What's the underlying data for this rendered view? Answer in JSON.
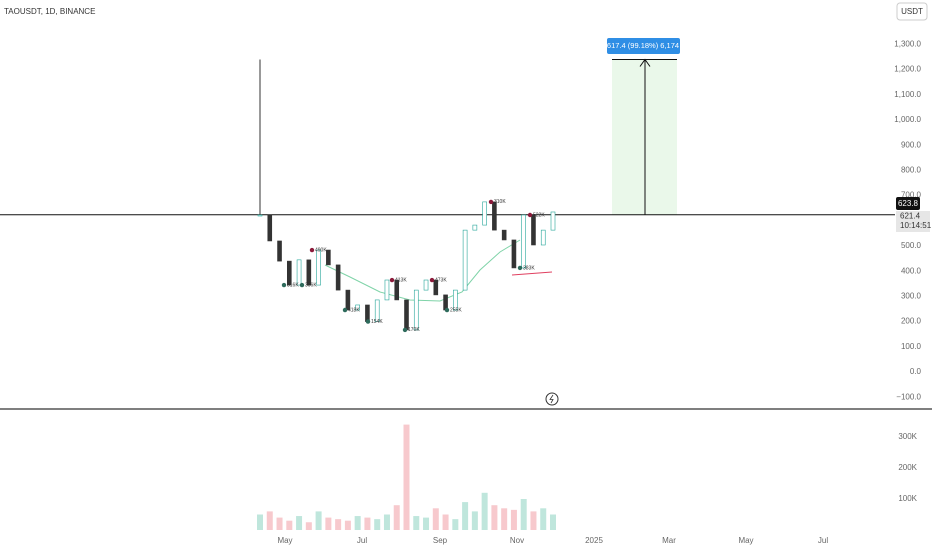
{
  "header": {
    "symbol": "TAOUSDT, 1D, BINANCE",
    "currency": "USDT"
  },
  "price_axis": {
    "ticks": [
      {
        "value": 1300,
        "label": "1,300.0"
      },
      {
        "value": 1200,
        "label": "1,200.0"
      },
      {
        "value": 1100,
        "label": "1,100.0"
      },
      {
        "value": 1000,
        "label": "1,000.0"
      },
      {
        "value": 900,
        "label": "900.0"
      },
      {
        "value": 800,
        "label": "800.0"
      },
      {
        "value": 700,
        "label": "700.0"
      },
      {
        "value": 500,
        "label": "500.0"
      },
      {
        "value": 400,
        "label": "400.0"
      },
      {
        "value": 300,
        "label": "300.0"
      },
      {
        "value": 200,
        "label": "200.0"
      },
      {
        "value": 100,
        "label": "100.0"
      },
      {
        "value": 0,
        "label": "0.0"
      },
      {
        "value": -100,
        "label": "−100.0"
      }
    ],
    "level": {
      "value": 623.8,
      "label": "623.8"
    },
    "last": {
      "value": 621.4,
      "label": "621.4"
    },
    "countdown": "10:14:51"
  },
  "volume_axis": {
    "ticks": [
      {
        "value": 300,
        "label": "300K"
      },
      {
        "value": 200,
        "label": "200K"
      },
      {
        "value": 100,
        "label": "100K"
      }
    ]
  },
  "time_axis": [
    "May",
    "Jul",
    "Sep",
    "Nov",
    "2025",
    "Mar",
    "May",
    "Jul"
  ],
  "measure": {
    "label": "617.4 (99.18%) 6,174",
    "top": 1240
  },
  "wick_high": 1240,
  "closes": [
    623,
    520,
    440,
    345,
    445,
    345,
    484,
    425,
    325,
    246,
    266,
    200,
    286,
    365,
    286,
    167,
    325,
    365,
    306,
    246,
    325,
    563,
    583,
    675,
    563,
    524,
    413,
    623,
    504,
    563,
    635
  ],
  "volumes": [
    50,
    60,
    40,
    30,
    45,
    25,
    60,
    40,
    35,
    30,
    45,
    40,
    35,
    50,
    80,
    340,
    45,
    40,
    70,
    50,
    35,
    90,
    60,
    120,
    80,
    70,
    65,
    100,
    60,
    70,
    50
  ],
  "pivots": [
    {
      "label": "316K",
      "price": 345
    },
    {
      "label": "306K",
      "price": 345
    },
    {
      "label": "490K",
      "price": 484
    },
    {
      "label": "418K",
      "price": 246
    },
    {
      "label": "154K",
      "price": 200
    },
    {
      "label": "413K",
      "price": 365
    },
    {
      "label": "170K",
      "price": 167
    },
    {
      "label": "473K",
      "price": 365
    },
    {
      "label": "255K",
      "price": 246
    },
    {
      "label": "310K",
      "price": 675
    },
    {
      "label": "522K",
      "price": 623
    },
    {
      "label": "383K",
      "price": 413
    }
  ]
}
